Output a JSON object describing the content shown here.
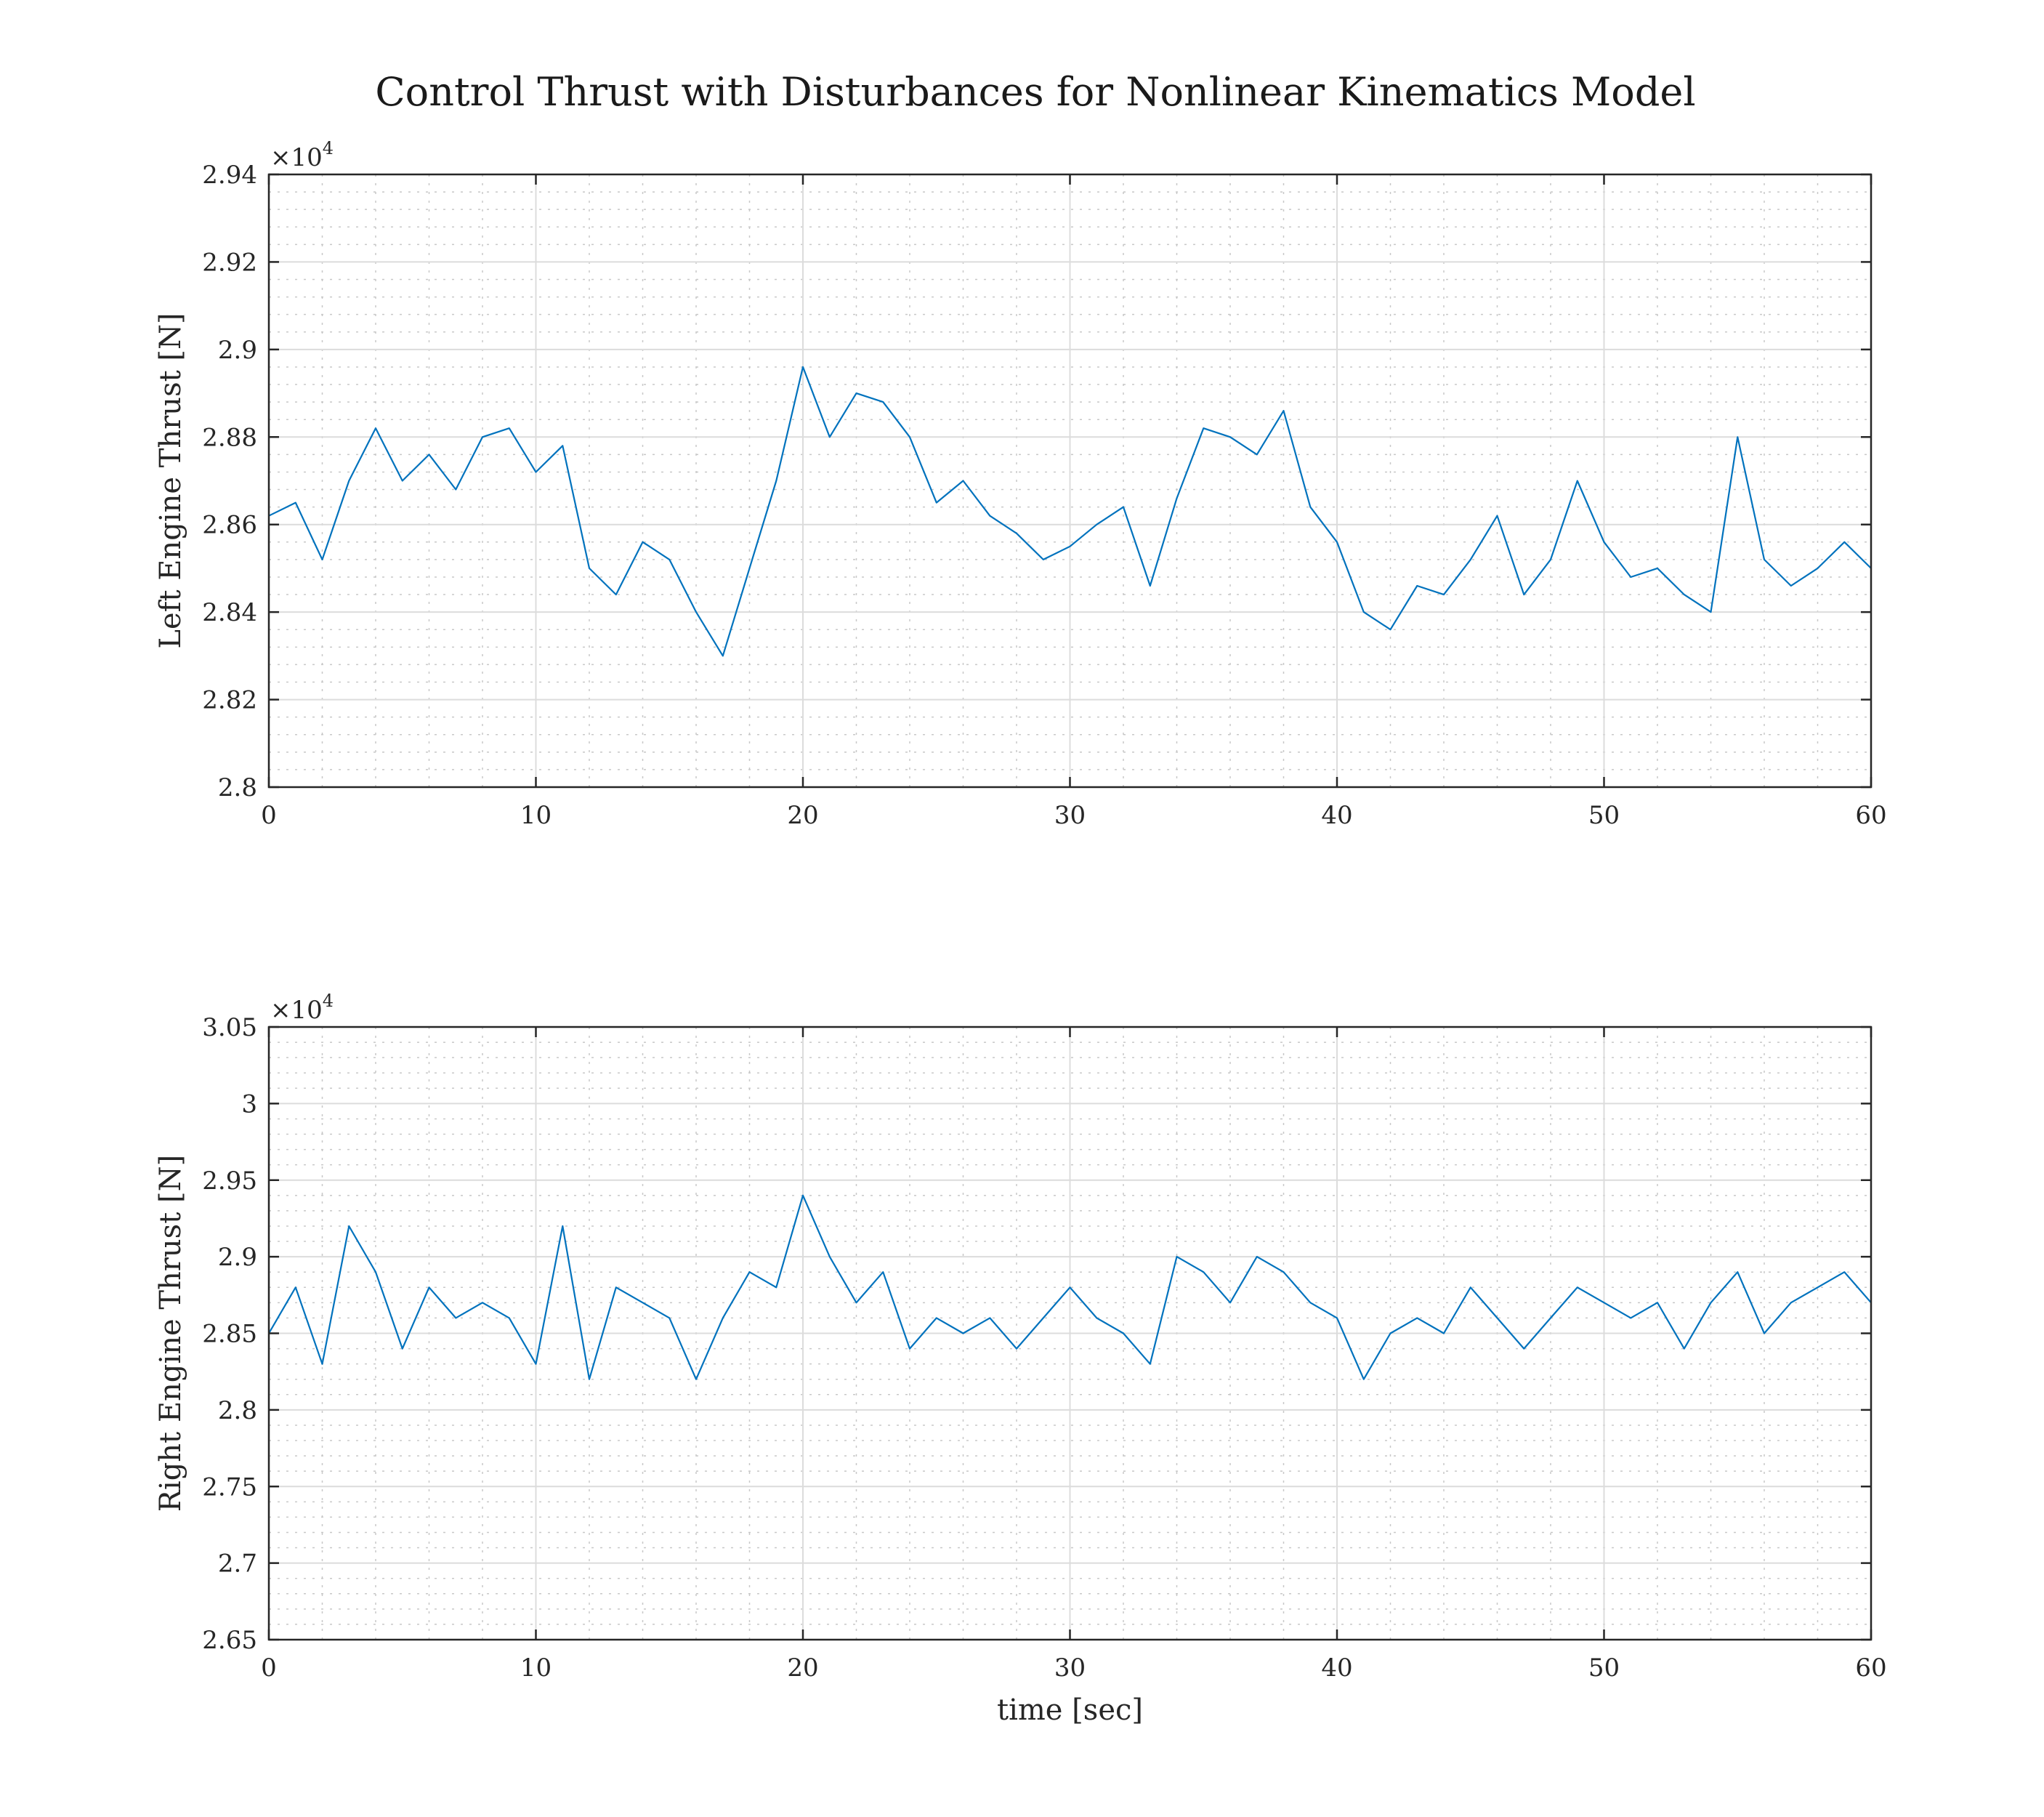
{
  "figure": {
    "title": "Control Thrust with Disturbances for Nonlinear Kinematics Model"
  },
  "chart_data": [
    {
      "type": "line",
      "title": "",
      "xlabel": "",
      "ylabel": "Left Engine Thrust [N]",
      "y_multiplier": "×10",
      "y_multiplier_exp": "4",
      "xlim": [
        0,
        60
      ],
      "ylim": [
        28000,
        29400
      ],
      "x_ticks": [
        "0",
        "10",
        "20",
        "30",
        "40",
        "50",
        "60"
      ],
      "y_ticks": [
        "2.8",
        "2.82",
        "2.84",
        "2.86",
        "2.88",
        "2.9",
        "2.92",
        "2.94"
      ],
      "grid": true,
      "minor_grid": true,
      "color": "#0072BD",
      "series": [
        {
          "x": [
            0,
            1,
            2,
            3,
            4,
            5,
            6,
            7,
            8,
            9,
            10,
            11,
            12,
            13,
            14,
            15,
            16,
            17,
            18,
            19,
            20,
            21,
            22,
            23,
            24,
            25,
            26,
            27,
            28,
            29,
            30,
            31,
            32,
            33,
            34,
            35,
            36,
            37,
            38,
            39,
            40,
            41,
            42,
            43,
            44,
            45,
            46,
            47,
            48,
            49,
            50,
            51,
            52,
            53,
            54,
            55,
            56,
            57,
            58,
            59,
            60
          ],
          "values": [
            28620,
            28650,
            28520,
            28700,
            28820,
            28700,
            28760,
            28680,
            28800,
            28820,
            28720,
            28780,
            28500,
            28440,
            28560,
            28520,
            28400,
            28300,
            28500,
            28700,
            28960,
            28800,
            28900,
            28880,
            28800,
            28650,
            28700,
            28620,
            28580,
            28520,
            28550,
            28600,
            28640,
            28460,
            28660,
            28820,
            28800,
            28760,
            28860,
            28640,
            28560,
            28400,
            28360,
            28460,
            28440,
            28520,
            28620,
            28440,
            28520,
            28700,
            28560,
            28480,
            28500,
            28440,
            28400,
            28800,
            28520,
            28460,
            28500,
            28560,
            28500
          ]
        }
      ]
    },
    {
      "type": "line",
      "title": "",
      "xlabel": "time [sec]",
      "ylabel": "Right Engine Thrust [N]",
      "y_multiplier": "×10",
      "y_multiplier_exp": "4",
      "xlim": [
        0,
        60
      ],
      "ylim": [
        26500,
        30500
      ],
      "x_ticks": [
        "0",
        "10",
        "20",
        "30",
        "40",
        "50",
        "60"
      ],
      "y_ticks": [
        "2.65",
        "2.7",
        "2.75",
        "2.8",
        "2.85",
        "2.9",
        "2.95",
        "3",
        "3.05"
      ],
      "grid": true,
      "minor_grid": true,
      "color": "#0072BD",
      "series": [
        {
          "x": [
            0,
            1,
            2,
            3,
            4,
            5,
            6,
            7,
            8,
            9,
            10,
            11,
            12,
            13,
            14,
            15,
            16,
            17,
            18,
            19,
            20,
            21,
            22,
            23,
            24,
            25,
            26,
            27,
            28,
            29,
            30,
            31,
            32,
            33,
            34,
            35,
            36,
            37,
            38,
            39,
            40,
            41,
            42,
            43,
            44,
            45,
            46,
            47,
            48,
            49,
            50,
            51,
            52,
            53,
            54,
            55,
            56,
            57,
            58,
            59,
            60
          ],
          "values": [
            28500,
            28800,
            28300,
            29200,
            28900,
            28400,
            28800,
            28600,
            28700,
            28600,
            28300,
            29200,
            28200,
            28800,
            28700,
            28600,
            28200,
            28600,
            28900,
            28800,
            29400,
            29000,
            28700,
            28900,
            28400,
            28600,
            28500,
            28600,
            28400,
            28600,
            28800,
            28600,
            28500,
            28300,
            29000,
            28900,
            28700,
            29000,
            28900,
            28700,
            28600,
            28200,
            28500,
            28600,
            28500,
            28800,
            28600,
            28400,
            28600,
            28800,
            28700,
            28600,
            28700,
            28400,
            28700,
            28900,
            28500,
            28700,
            28800,
            28900,
            28700
          ]
        }
      ]
    }
  ]
}
